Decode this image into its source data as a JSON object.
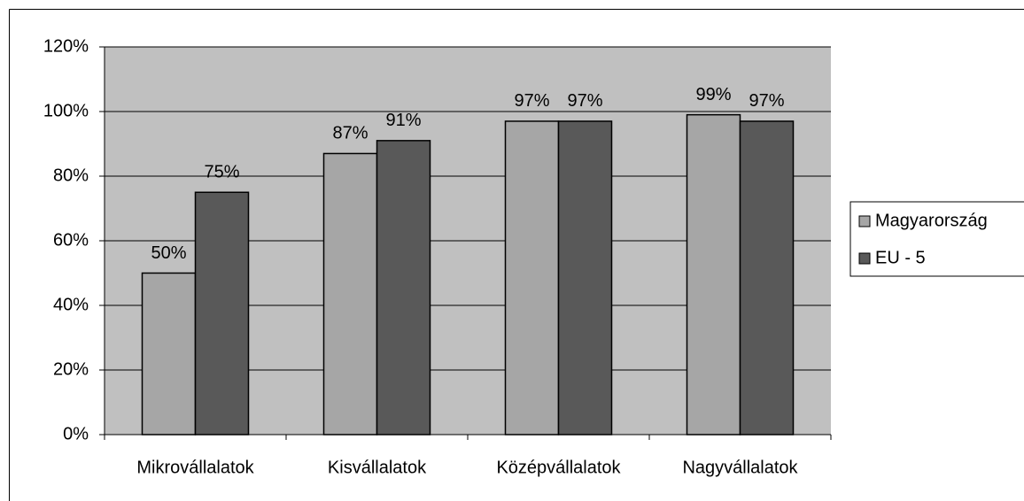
{
  "chart_data": {
    "type": "bar",
    "categories": [
      "Mikrovállalatok",
      "Kisvállalatok",
      "Középvállalatok",
      "Nagyvállalatok"
    ],
    "series": [
      {
        "name": "Magyarország",
        "color": "#a6a6a6",
        "values": [
          50,
          87,
          97,
          99
        ],
        "value_labels": [
          "50%",
          "87%",
          "97%",
          "99%"
        ]
      },
      {
        "name": "EU - 5",
        "color": "#595959",
        "values": [
          75,
          91,
          97,
          97
        ],
        "value_labels": [
          "75%",
          "91%",
          "97%",
          "97%"
        ]
      }
    ],
    "ylim": [
      0,
      120
    ],
    "yticks": [
      {
        "value": 0,
        "label": "0%"
      },
      {
        "value": 20,
        "label": "20%"
      },
      {
        "value": 40,
        "label": "40%"
      },
      {
        "value": 60,
        "label": "60%"
      },
      {
        "value": 80,
        "label": "80%"
      },
      {
        "value": 100,
        "label": "100%"
      },
      {
        "value": 120,
        "label": "120%"
      }
    ],
    "grid": true,
    "legend": "right"
  }
}
